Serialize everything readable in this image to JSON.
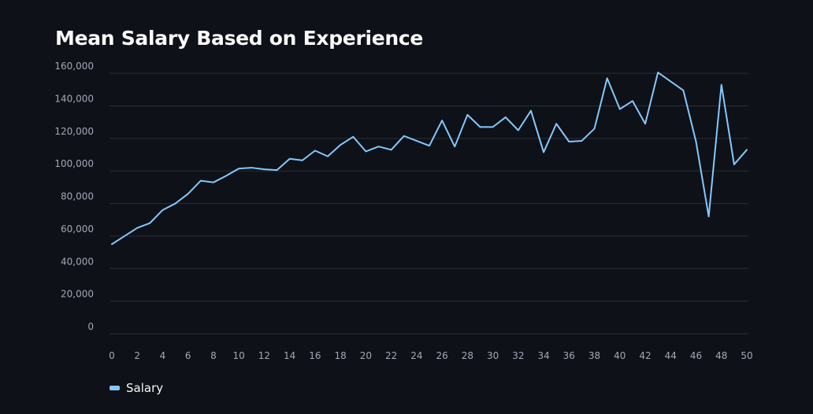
{
  "chart_data": {
    "type": "line",
    "title": "Mean Salary Based on Experience",
    "xlabel": "",
    "ylabel": "",
    "xlim": [
      0,
      50
    ],
    "ylim": [
      0,
      162000
    ],
    "x_ticks": [
      0,
      2,
      4,
      6,
      8,
      10,
      12,
      14,
      16,
      18,
      20,
      22,
      24,
      26,
      28,
      30,
      32,
      34,
      36,
      38,
      40,
      42,
      44,
      46,
      48,
      50
    ],
    "y_ticks": [
      0,
      20000,
      40000,
      60000,
      80000,
      100000,
      120000,
      140000,
      160000
    ],
    "y_tick_labels": [
      "0",
      "20,000",
      "40,000",
      "60,000",
      "80,000",
      "100,000",
      "120,000",
      "140,000",
      "160,000"
    ],
    "grid": true,
    "legend_position": "bottom-left",
    "series": [
      {
        "name": "Salary",
        "color": "#83c9ff",
        "x": [
          0,
          1,
          2,
          3,
          4,
          5,
          6,
          7,
          8,
          9,
          10,
          11,
          12,
          13,
          14,
          15,
          16,
          17,
          18,
          19,
          20,
          21,
          22,
          23,
          24,
          25,
          26,
          27,
          28,
          29,
          30,
          31,
          32,
          33,
          34,
          35,
          36,
          37,
          38,
          39,
          40,
          41,
          42,
          43,
          44,
          45,
          46,
          47,
          48,
          49,
          50
        ],
        "y": [
          55000,
          60000,
          65000,
          68000,
          76000,
          80000,
          86000,
          94000,
          93000,
          97000,
          101500,
          102000,
          101000,
          100500,
          107500,
          106500,
          112500,
          109000,
          116000,
          121000,
          112000,
          115000,
          113000,
          121500,
          118500,
          115500,
          131000,
          115000,
          134500,
          127000,
          127000,
          133000,
          125000,
          137000,
          111500,
          129000,
          118000,
          118500,
          126000,
          157000,
          138000,
          143000,
          129000,
          160500,
          155000,
          149500,
          118000,
          72000,
          153000,
          104000,
          113000
        ]
      }
    ]
  },
  "page": {
    "title": "Mean Salary Based on Experience",
    "legend": {
      "label": "Salary",
      "color": "#83c9ff"
    }
  }
}
